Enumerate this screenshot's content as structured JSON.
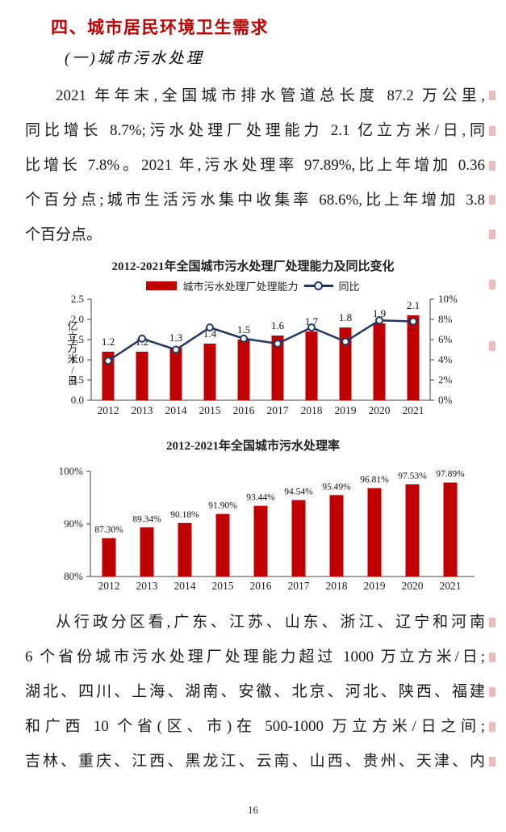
{
  "heading": "四、城市居民环境卫生需求",
  "subheading": "(一)城市污水处理",
  "paragraph1_lines": [
    "2021 年年末,全国城市排水管道总长度 87.2 万公里,",
    "同比增长 8.7%;污水处理厂处理能力 2.1 亿立方米/日,同",
    "比增长 7.8%。2021 年,污水处理率 97.89%,比上年增加 0.36",
    "个百分点;城市生活污水集中收集率 68.6%,比上年增加 3.8",
    "个百分点。"
  ],
  "paragraph2_lines": [
    "从行政分区看,广东、江苏、山东、浙江、辽宁和河南",
    "6 个省份城市污水处理厂处理能力超过 1000 万立方米/日;",
    "湖北、四川、上海、湖南、安徽、北京、河北、陕西、福建",
    "和广西 10 个省(区、市)在 500-1000 万立方米/日之间;",
    "吉林、重庆、江西、黑龙江、云南、山西、贵州、天津、内"
  ],
  "page_number": "16",
  "colors": {
    "bar_red": "#c00000",
    "line_navy": "#1f3864",
    "heading_red": "#c00000"
  },
  "chart_data": [
    {
      "type": "bar",
      "title": "2012-2021年全国城市污水处理厂处理能力及同比变化",
      "categories": [
        "2012",
        "2013",
        "2014",
        "2015",
        "2016",
        "2017",
        "2018",
        "2019",
        "2020",
        "2021"
      ],
      "series": [
        {
          "name": "城市污水处理厂处理能力",
          "type": "bar",
          "color": "#c00000",
          "axis": "left",
          "values": [
            1.2,
            1.2,
            1.3,
            1.4,
            1.5,
            1.6,
            1.7,
            1.8,
            1.9,
            2.1
          ],
          "labels": [
            "1.2",
            "1.2",
            "1.3",
            "1.4",
            "1.5",
            "1.6",
            "1.7",
            "1.8",
            "1.9",
            "2.1"
          ]
        },
        {
          "name": "同比",
          "type": "line",
          "color": "#1f3864",
          "axis": "right",
          "values": [
            3.9,
            6.1,
            5.0,
            7.2,
            6.1,
            5.6,
            7.2,
            5.8,
            7.9,
            7.8
          ]
        }
      ],
      "left_axis": {
        "label": "亿立方米/日",
        "min": 0,
        "max": 2.5,
        "ticks": [
          "2.5",
          "2.0",
          "1.5",
          "1.0",
          "0.5",
          "0.0"
        ]
      },
      "right_axis": {
        "min": 0,
        "max": 10,
        "ticks": [
          "10%",
          "8%",
          "6%",
          "4%",
          "2%",
          "0%"
        ]
      },
      "grid": false,
      "legend_position": "top"
    },
    {
      "type": "bar",
      "title": "2012-2021年全国城市污水处理率",
      "categories": [
        "2012",
        "2013",
        "2014",
        "2015",
        "2016",
        "2017",
        "2018",
        "2019",
        "2020",
        "2021"
      ],
      "values": [
        87.3,
        89.34,
        90.18,
        91.9,
        93.44,
        94.54,
        95.49,
        96.81,
        97.53,
        97.89
      ],
      "labels": [
        "87.30%",
        "89.34%",
        "90.18%",
        "91.90%",
        "93.44%",
        "94.54%",
        "95.49%",
        "96.81%",
        "97.53%",
        "97.89%"
      ],
      "bar_color": "#c00000",
      "xlabel": "",
      "ylabel": "",
      "ylim": [
        80,
        100
      ],
      "yticks": [
        "100%",
        "90%",
        "80%"
      ],
      "grid": false
    }
  ]
}
